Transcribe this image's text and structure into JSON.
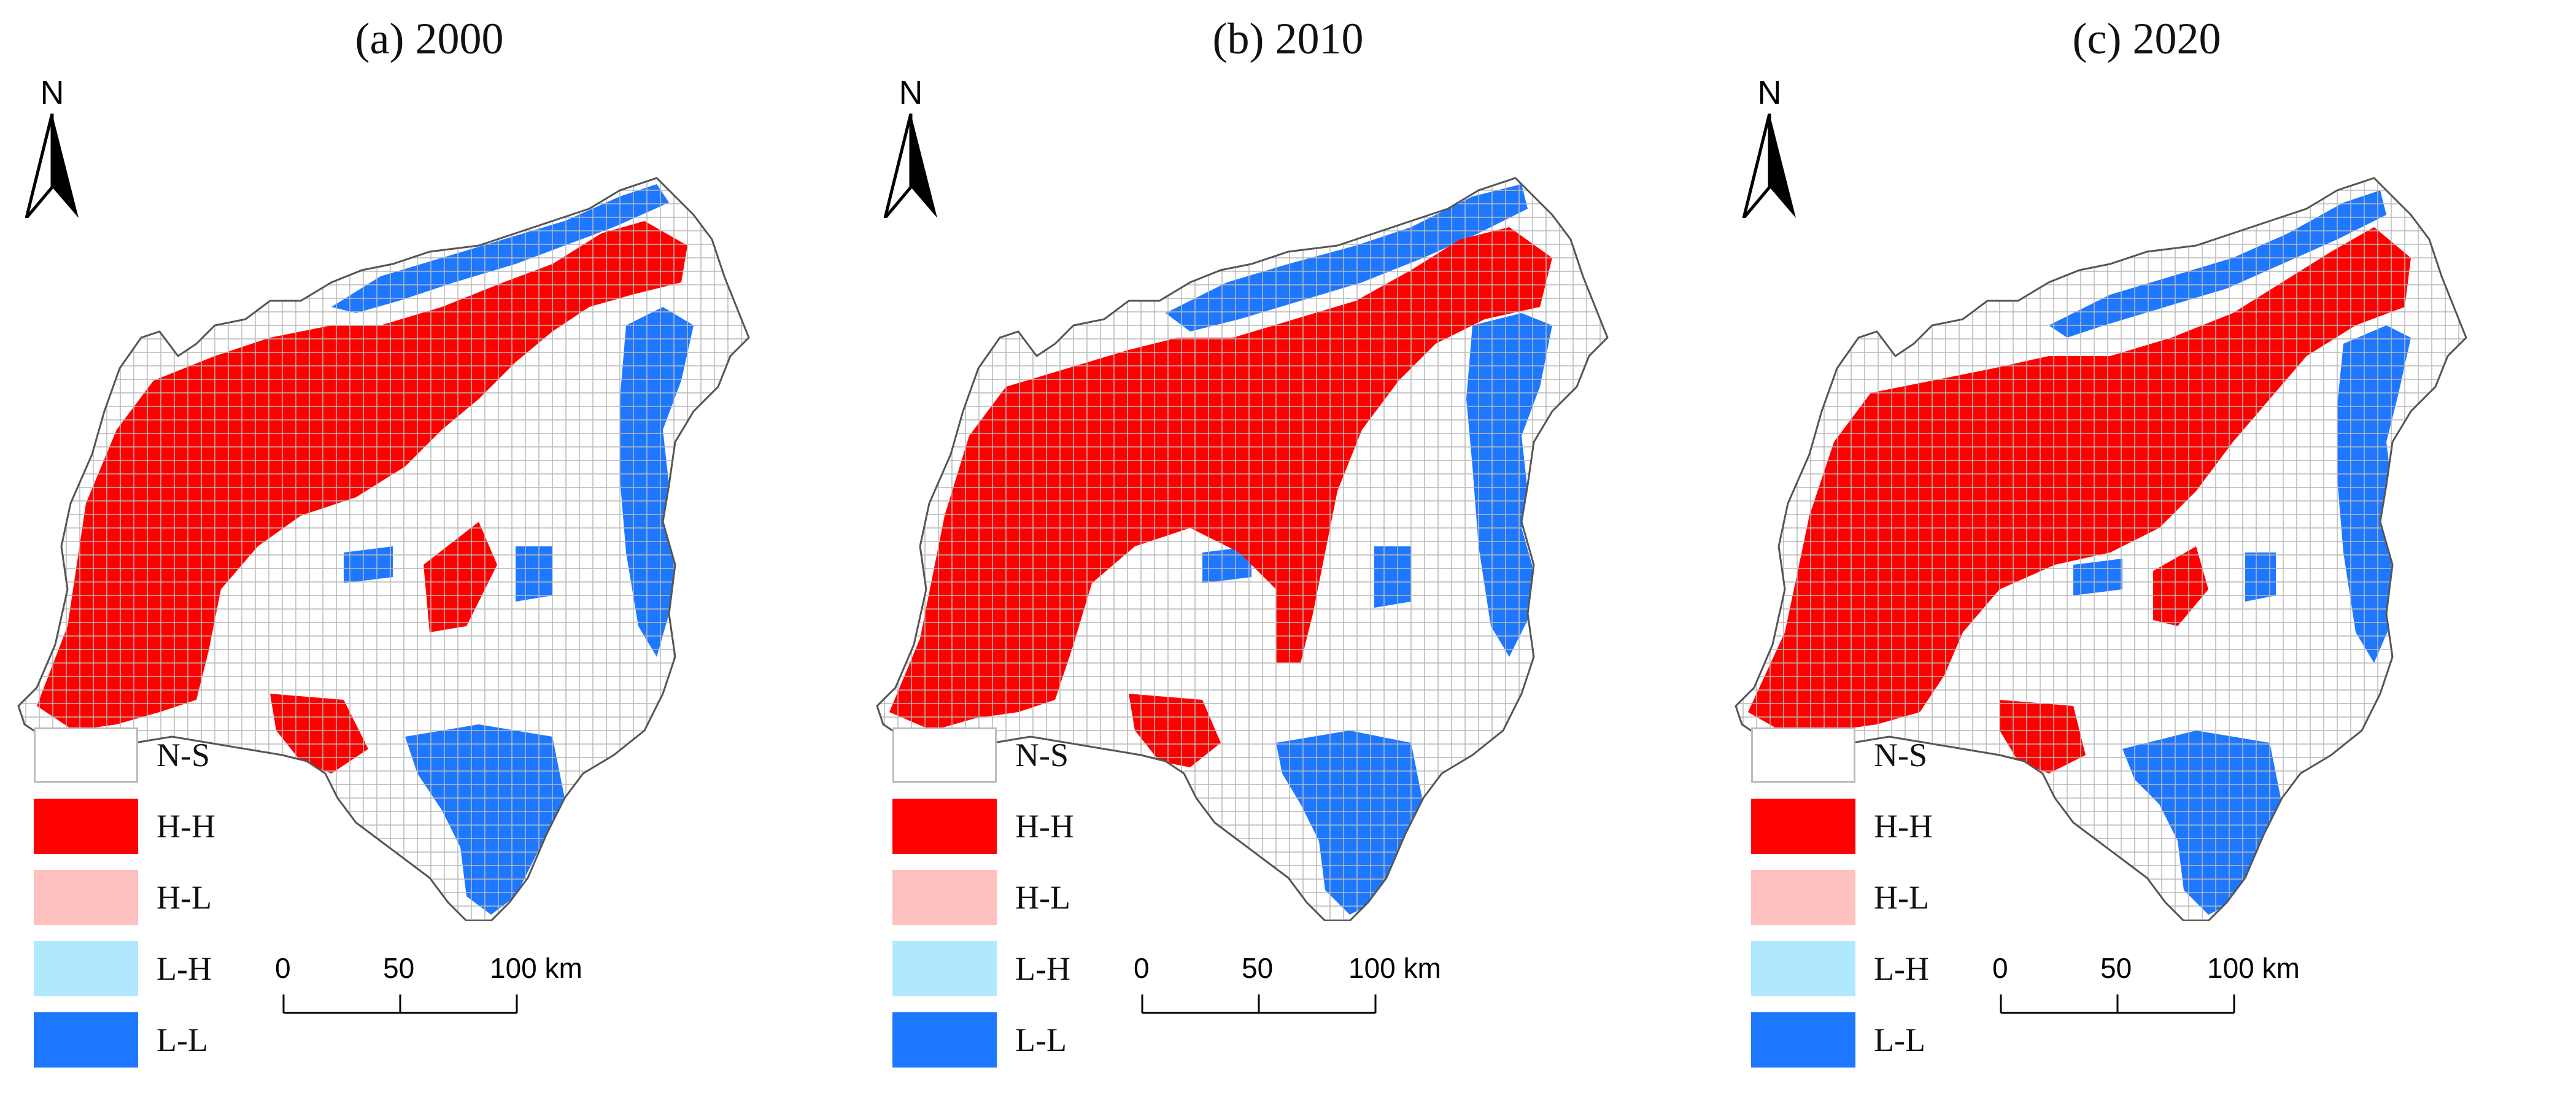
{
  "figure": {
    "panels": [
      {
        "title": "(a) 2000",
        "year": "2000"
      },
      {
        "title": "(b) 2010",
        "year": "2010"
      },
      {
        "title": "(c) 2020",
        "year": "2020"
      }
    ],
    "north_label": "N",
    "legend": [
      {
        "label": "N-S",
        "color": "#ffffff"
      },
      {
        "label": "H-H",
        "color": "#ff0000"
      },
      {
        "label": "H-L",
        "color": "#ffc0c0"
      },
      {
        "label": "L-H",
        "color": "#b0e8ff"
      },
      {
        "label": "L-L",
        "color": "#1e78ff"
      }
    ],
    "scale_bar": {
      "ticks": [
        "0",
        "50",
        "100"
      ],
      "unit": "km"
    }
  }
}
